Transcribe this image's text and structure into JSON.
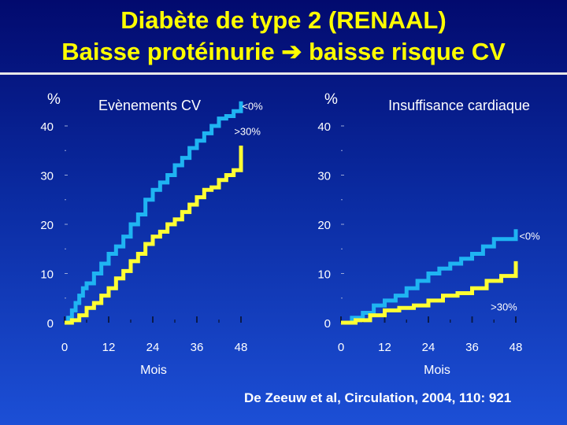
{
  "title": {
    "line1": "Diabète de type 2 (RENAAL)",
    "line2_left": "Baisse protéinurie",
    "arrow": "➔",
    "line2_right": "baisse risque CV"
  },
  "reference": "De Zeeuw et al, Circulation, 2004, 110: 921",
  "colors": {
    "cyan": "#1fb4f2",
    "yellow": "#ffff33",
    "title": "#ffff00",
    "text": "#ffffff"
  },
  "chart_data": [
    {
      "type": "line",
      "title": "Evènements CV",
      "ylabel": "%",
      "xlabel": "Mois",
      "xticks": [
        0,
        12,
        24,
        36,
        48
      ],
      "xtick_labels": [
        "0",
        "12",
        "24",
        "36",
        "48"
      ],
      "yticks": [
        0,
        10,
        20,
        30,
        40
      ],
      "ytick_labels": [
        "0",
        "10",
        "20",
        "30",
        "40"
      ],
      "xlim": [
        0,
        48
      ],
      "ylim": [
        0,
        40
      ],
      "series": [
        {
          "name": "<0%",
          "color": "#1fb4f2",
          "x": [
            0,
            1,
            2,
            3,
            4,
            5,
            6,
            8,
            10,
            12,
            14,
            16,
            18,
            20,
            22,
            24,
            26,
            28,
            30,
            32,
            34,
            36,
            38,
            40,
            42,
            44,
            46,
            48,
            48
          ],
          "y": [
            0,
            1,
            2.5,
            4,
            5.5,
            7,
            8,
            10,
            12,
            14,
            15.5,
            17.5,
            20,
            22,
            25,
            27,
            28.5,
            30,
            32,
            33.5,
            35.5,
            37,
            38.5,
            40,
            41.5,
            42,
            43,
            43,
            45
          ]
        },
        {
          "name": ">30%",
          "color": "#ffff33",
          "x": [
            0,
            2,
            4,
            6,
            8,
            10,
            12,
            14,
            16,
            18,
            20,
            22,
            24,
            26,
            28,
            30,
            32,
            34,
            36,
            38,
            40,
            42,
            44,
            46,
            48,
            48
          ],
          "y": [
            0,
            0.5,
            1.5,
            3,
            4,
            5.5,
            7,
            9,
            10.5,
            12.5,
            14,
            16,
            17.5,
            18.5,
            20,
            21,
            22.5,
            24,
            25.5,
            27,
            27.5,
            29,
            30,
            31,
            32,
            36
          ]
        }
      ],
      "annotations": [
        {
          "text": "<0%",
          "x": 47,
          "y": 43
        },
        {
          "text": ">30%",
          "x": 44,
          "y": 37.5
        }
      ]
    },
    {
      "type": "line",
      "title": "Insuffisance cardiaque",
      "ylabel": "%",
      "xlabel": "Mois",
      "xticks": [
        0,
        12,
        24,
        36,
        48
      ],
      "xtick_labels": [
        "0",
        "12",
        "24",
        "36",
        "48"
      ],
      "yticks": [
        0,
        10,
        20,
        30,
        40
      ],
      "ytick_labels": [
        "0",
        "10",
        "20",
        "30",
        "40"
      ],
      "xlim": [
        0,
        48
      ],
      "ylim": [
        0,
        40
      ],
      "series": [
        {
          "name": "<0%",
          "color": "#1fb4f2",
          "x": [
            0,
            3,
            6,
            9,
            12,
            15,
            18,
            21,
            24,
            27,
            30,
            33,
            36,
            39,
            42,
            44,
            46,
            48,
            48
          ],
          "y": [
            0,
            1,
            2,
            3.5,
            4.5,
            5.5,
            7,
            8.5,
            10,
            11,
            12,
            13,
            14,
            15.5,
            17,
            17,
            17,
            17,
            19
          ]
        },
        {
          "name": ">30%",
          "color": "#ffff33",
          "x": [
            0,
            4,
            8,
            12,
            16,
            20,
            24,
            28,
            32,
            36,
            40,
            44,
            48,
            48
          ],
          "y": [
            0,
            0.5,
            1.5,
            2.5,
            3,
            3.5,
            4.5,
            5.5,
            6,
            7,
            8.5,
            9.5,
            10,
            12.5
          ]
        }
      ],
      "annotations": [
        {
          "text": "<0%",
          "x": 48.5,
          "y": 17.5
        },
        {
          "text": ">30%",
          "x": 45,
          "y": 6
        }
      ]
    }
  ]
}
